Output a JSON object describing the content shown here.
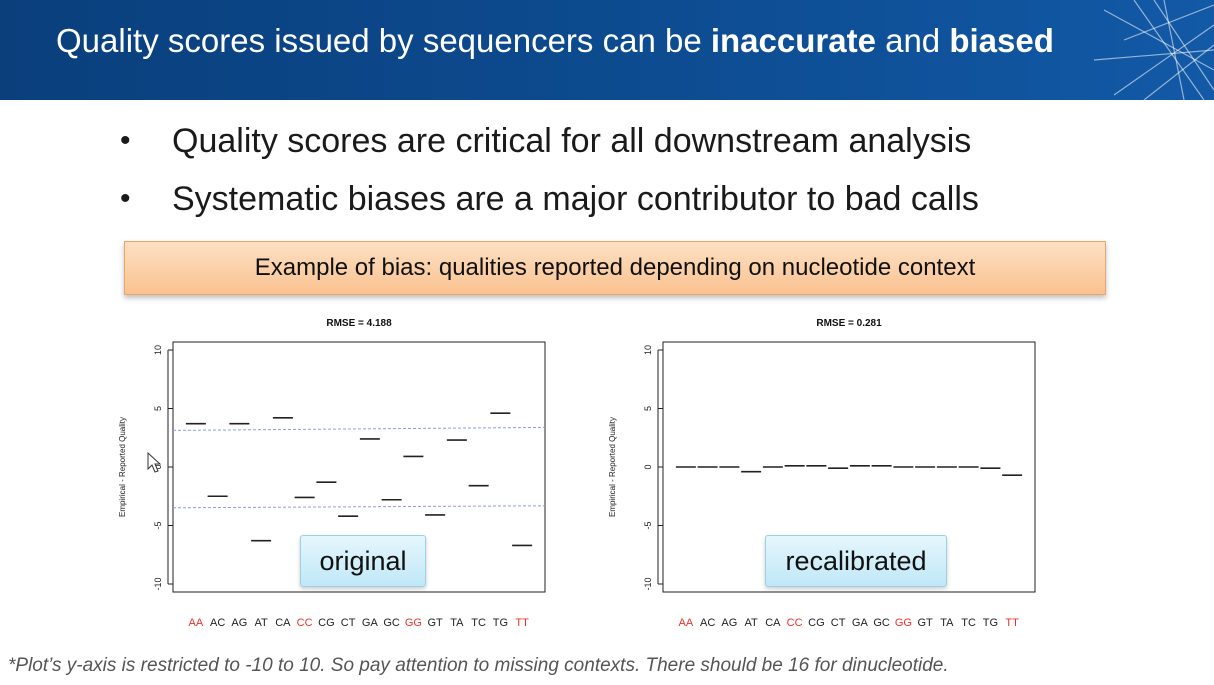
{
  "header": {
    "title_part1": "Quality scores issued by sequencers can be ",
    "title_bold1": "inaccurate",
    "title_part2": " and ",
    "title_bold2": "biased"
  },
  "bullets": [
    "Quality scores are critical for all downstream analysis",
    "Systematic biases are a major contributor to bad calls"
  ],
  "banner": "Example of bias: qualities reported depending on nucleotide context",
  "footnote": "*Plot’s y-axis is restricted to -10 to 10. So pay attention to missing contexts. There should be 16 for dinucleotide.",
  "colors": {
    "highlight": "#e8322a",
    "header": "#0d4c91",
    "dashed": "#8a9fe0"
  },
  "chart_data": [
    {
      "type": "scatter",
      "title": "RMSE = 4.188",
      "ylabel": "Empirical - Reported Quality",
      "ylim": [
        -10,
        10
      ],
      "yticks": [
        -10,
        -5,
        0,
        5,
        10
      ],
      "categories": [
        "AA",
        "AC",
        "AG",
        "AT",
        "CA",
        "CC",
        "CG",
        "CT",
        "GA",
        "GC",
        "GG",
        "GT",
        "TA",
        "TC",
        "TG",
        "TT"
      ],
      "highlight": [
        "AA",
        "CC",
        "GG",
        "TT"
      ],
      "values": [
        3.7,
        -2.5,
        3.7,
        -6.3,
        4.2,
        -2.6,
        -1.3,
        -4.2,
        2.4,
        -2.8,
        0.9,
        -4.1,
        2.3,
        -1.6,
        4.6,
        -6.7
      ],
      "reference_lines": [
        3.3,
        -3.4
      ],
      "label": "original"
    },
    {
      "type": "scatter",
      "title": "RMSE = 0.281",
      "ylabel": "Empirical - Reported Quality",
      "ylim": [
        -10,
        10
      ],
      "yticks": [
        -10,
        -5,
        0,
        5,
        10
      ],
      "categories": [
        "AA",
        "AC",
        "AG",
        "AT",
        "CA",
        "CC",
        "CG",
        "CT",
        "GA",
        "GC",
        "GG",
        "GT",
        "TA",
        "TC",
        "TG",
        "TT"
      ],
      "highlight": [
        "AA",
        "CC",
        "GG",
        "TT"
      ],
      "values": [
        0.0,
        0.0,
        0.0,
        -0.4,
        0.0,
        0.1,
        0.1,
        -0.1,
        0.1,
        0.1,
        0.0,
        0.0,
        0.0,
        0.0,
        -0.1,
        -0.7
      ],
      "reference_lines": [],
      "label": "recalibrated"
    }
  ]
}
